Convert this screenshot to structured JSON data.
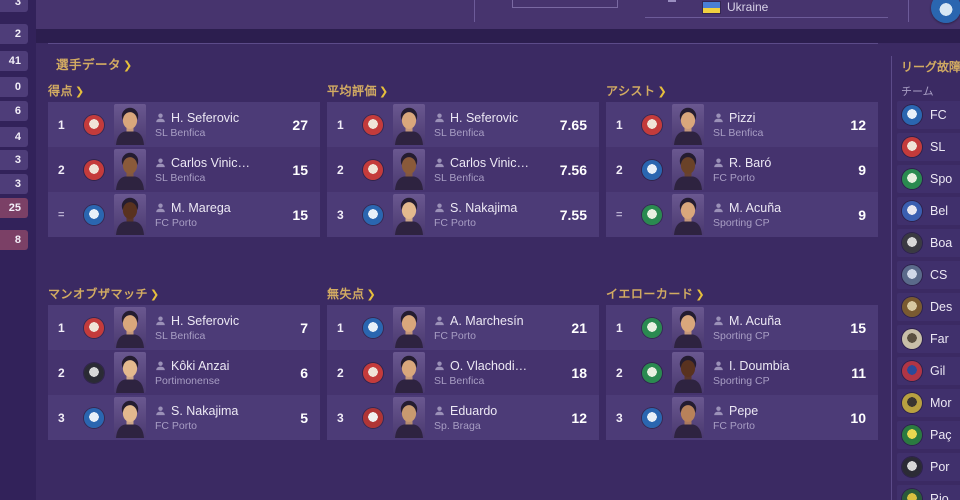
{
  "ui": {
    "chevron": "❯"
  },
  "top_bar": {
    "nation_label": "Ukraine",
    "flag_top_color": "#4a7fd4",
    "flag_bottom_color": "#f0d040"
  },
  "left_column": {
    "items": [
      {
        "value": "3",
        "highlight": false
      },
      {
        "value": "2",
        "highlight": false
      },
      {
        "value": "41",
        "highlight": false
      },
      {
        "value": "0",
        "highlight": false
      },
      {
        "value": "6",
        "highlight": false
      },
      {
        "value": "4",
        "highlight": false
      },
      {
        "value": "3",
        "highlight": false
      },
      {
        "value": "3",
        "highlight": false
      },
      {
        "value": "25",
        "highlight": true
      },
      {
        "value": "8",
        "highlight": true
      }
    ]
  },
  "crests": {
    "benfica": {
      "c1": "#c43b3b",
      "c2": "#f0e4d8"
    },
    "porto": {
      "c1": "#2a66b0",
      "c2": "#e8f0f8"
    },
    "sporting": {
      "c1": "#2a8a50",
      "c2": "#e8f0e0"
    },
    "portimonense": {
      "c1": "#2b2b35",
      "c2": "#d8d8d8"
    },
    "braga": {
      "c1": "#b03535",
      "c2": "#f0f0f0"
    }
  },
  "player_data": {
    "section_title": "選手データ",
    "panels": [
      {
        "title": "得点",
        "rows": [
          {
            "rank": "1",
            "player": "H. Seferovic",
            "club": "SL Benfica",
            "value": "27",
            "crest": "benfica",
            "skin": "#d9a77c"
          },
          {
            "rank": "2",
            "player": "Carlos Vinic…",
            "club": "SL Benfica",
            "value": "15",
            "crest": "benfica",
            "skin": "#8a5a3a"
          },
          {
            "rank": "=",
            "player": "M. Marega",
            "club": "FC Porto",
            "value": "15",
            "crest": "porto",
            "skin": "#59321f"
          }
        ]
      },
      {
        "title": "平均評価",
        "rows": [
          {
            "rank": "1",
            "player": "H. Seferovic",
            "club": "SL Benfica",
            "value": "7.65",
            "crest": "benfica",
            "skin": "#d9a77c"
          },
          {
            "rank": "2",
            "player": "Carlos Vinic…",
            "club": "SL Benfica",
            "value": "7.56",
            "crest": "benfica",
            "skin": "#8a5a3a"
          },
          {
            "rank": "3",
            "player": "S. Nakajima",
            "club": "FC Porto",
            "value": "7.55",
            "crest": "porto",
            "skin": "#e3b98e"
          }
        ]
      },
      {
        "title": "アシスト",
        "rows": [
          {
            "rank": "1",
            "player": "Pizzi",
            "club": "SL Benfica",
            "value": "12",
            "crest": "benfica",
            "skin": "#d9a77c"
          },
          {
            "rank": "2",
            "player": "R. Baró",
            "club": "FC Porto",
            "value": "9",
            "crest": "porto",
            "skin": "#6a4228"
          },
          {
            "rank": "=",
            "player": "M. Acuña",
            "club": "Sporting CP",
            "value": "9",
            "crest": "sporting",
            "skin": "#d9a77c"
          }
        ]
      },
      {
        "title": "マンオブザマッチ",
        "rows": [
          {
            "rank": "1",
            "player": "H. Seferovic",
            "club": "SL Benfica",
            "value": "7",
            "crest": "benfica",
            "skin": "#d9a77c"
          },
          {
            "rank": "2",
            "player": "Kôki Anzai",
            "club": "Portimonense",
            "value": "6",
            "crest": "portimonense",
            "skin": "#e3b98e"
          },
          {
            "rank": "3",
            "player": "S. Nakajima",
            "club": "FC Porto",
            "value": "5",
            "crest": "porto",
            "skin": "#e3b98e"
          }
        ]
      },
      {
        "title": "無失点",
        "rows": [
          {
            "rank": "1",
            "player": "A. Marchesín",
            "club": "FC Porto",
            "value": "21",
            "crest": "porto",
            "skin": "#d9a77c"
          },
          {
            "rank": "2",
            "player": "O. Vlachodi…",
            "club": "SL Benfica",
            "value": "18",
            "crest": "benfica",
            "skin": "#d9a77c"
          },
          {
            "rank": "3",
            "player": "Eduardo",
            "club": "Sp. Braga",
            "value": "12",
            "crest": "braga",
            "skin": "#c89a70"
          }
        ]
      },
      {
        "title": "イエローカード",
        "rows": [
          {
            "rank": "1",
            "player": "M. Acuña",
            "club": "Sporting CP",
            "value": "15",
            "crest": "sporting",
            "skin": "#d9a77c"
          },
          {
            "rank": "2",
            "player": "I. Doumbia",
            "club": "Sporting CP",
            "value": "11",
            "crest": "sporting",
            "skin": "#59321f"
          },
          {
            "rank": "3",
            "player": "Pepe",
            "club": "FC Porto",
            "value": "10",
            "crest": "porto",
            "skin": "#b8825a"
          }
        ]
      }
    ]
  },
  "sidebar": {
    "title": "リーグ故障",
    "column_header": "チーム",
    "teams": [
      {
        "label": "FC",
        "c1": "#2a66b0",
        "c2": "#e8f0f8"
      },
      {
        "label": "SL",
        "c1": "#c43b3b",
        "c2": "#f0e4d8"
      },
      {
        "label": "Spo",
        "c1": "#2a8a50",
        "c2": "#e8f0e0"
      },
      {
        "label": "Bel",
        "c1": "#3a5fb0",
        "c2": "#e8e8f0"
      },
      {
        "label": "Boa",
        "c1": "#3a3a42",
        "c2": "#d8d8d8"
      },
      {
        "label": "CS",
        "c1": "#5a6a8a",
        "c2": "#d0d8e8"
      },
      {
        "label": "Des",
        "c1": "#7a5a30",
        "c2": "#d8c8a0"
      },
      {
        "label": "Far",
        "c1": "#c8bfa8",
        "c2": "#5a5040"
      },
      {
        "label": "Gil",
        "c1": "#b03545",
        "c2": "#2a4a9a"
      },
      {
        "label": "Mor",
        "c1": "#b8a040",
        "c2": "#3a3530"
      },
      {
        "label": "Paç",
        "c1": "#2a7a40",
        "c2": "#e8d850"
      },
      {
        "label": "Por",
        "c1": "#2b2b35",
        "c2": "#d8d8d8"
      },
      {
        "label": "Rio",
        "c1": "#2a5a3a",
        "c2": "#d8c040"
      }
    ]
  }
}
